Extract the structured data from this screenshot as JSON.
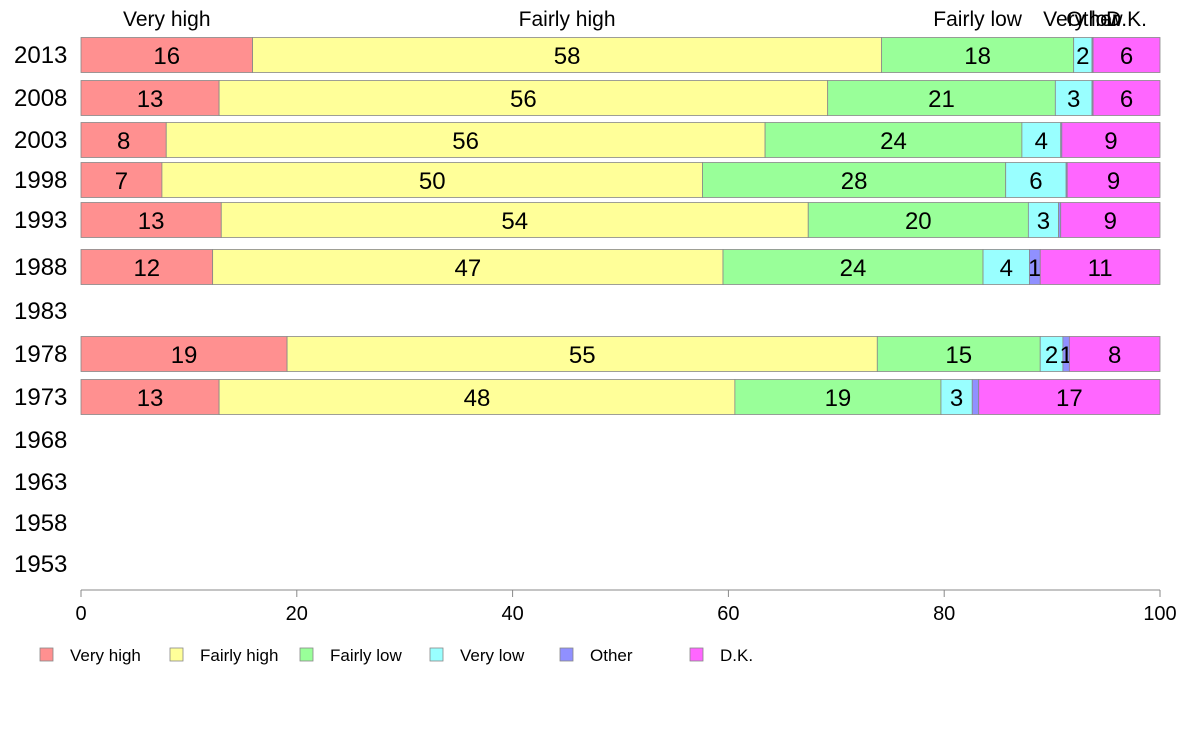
{
  "chart_data": {
    "type": "bar",
    "orientation": "horizontal",
    "stacked": true,
    "title": "",
    "xlabel": "",
    "ylabel": "",
    "xlim": [
      0,
      100
    ],
    "x_ticks": [
      "0",
      "20",
      "40",
      "60",
      "80",
      "100"
    ],
    "legend_position": "bottom",
    "categories": [
      "2013",
      "2008",
      "2003",
      "1998",
      "1993",
      "1988",
      "1983",
      "1978",
      "1973",
      "1968",
      "1963",
      "1958",
      "1953"
    ],
    "series": [
      {
        "name": "Very high",
        "color": "#ff9090",
        "values": [
          15.9,
          12.8,
          7.9,
          7.5,
          13.0,
          12.2,
          null,
          19.1,
          12.8,
          null,
          null,
          null,
          null
        ]
      },
      {
        "name": "Fairly high",
        "color": "#ffff99",
        "values": [
          58.3,
          56.4,
          55.5,
          50.1,
          54.4,
          47.3,
          null,
          54.7,
          47.8,
          null,
          null,
          null,
          null
        ]
      },
      {
        "name": "Fairly low",
        "color": "#99ff99",
        "values": [
          17.8,
          21.1,
          23.8,
          28.1,
          20.4,
          24.1,
          null,
          15.1,
          19.1,
          null,
          null,
          null,
          null
        ]
      },
      {
        "name": "Very low",
        "color": "#99ffff",
        "values": [
          1.7,
          3.4,
          3.6,
          5.6,
          2.8,
          4.3,
          null,
          2.1,
          2.9,
          null,
          null,
          null,
          null
        ]
      },
      {
        "name": "Other",
        "color": "#9090ff",
        "values": [
          0.1,
          0.1,
          0.1,
          0.1,
          0.2,
          1.0,
          null,
          0.6,
          0.6,
          null,
          null,
          null,
          null
        ]
      },
      {
        "name": "D.K.",
        "color": "#ff66ff",
        "values": [
          6.2,
          6.2,
          9.1,
          8.6,
          9.2,
          11.1,
          null,
          8.4,
          16.8,
          null,
          null,
          null,
          null
        ]
      }
    ],
    "labels": {
      "2013": [
        "16",
        "58",
        "18",
        "2",
        "",
        "6"
      ],
      "2008": [
        "13",
        "56",
        "21",
        "3",
        "",
        "6"
      ],
      "2003": [
        "8",
        "56",
        "24",
        "4",
        "",
        "9"
      ],
      "1998": [
        "7",
        "50",
        "28",
        "6",
        "",
        "9"
      ],
      "1993": [
        "13",
        "54",
        "20",
        "3",
        "",
        "9"
      ],
      "1988": [
        "12",
        "47",
        "24",
        "4",
        "1",
        "11"
      ],
      "1983": [
        "",
        "",
        "",
        "",
        "",
        ""
      ],
      "1978": [
        "19",
        "55",
        "15",
        "2",
        "1",
        "8"
      ],
      "1973": [
        "13",
        "48",
        "19",
        "3",
        "",
        "17"
      ],
      "1968": [
        "",
        "",
        "",
        "",
        "",
        ""
      ],
      "1963": [
        "",
        "",
        "",
        "",
        "",
        ""
      ],
      "1958": [
        "",
        "",
        "",
        "",
        "",
        ""
      ],
      "1953": [
        "",
        "",
        "",
        "",
        "",
        ""
      ]
    },
    "top_labels": [
      "Very high",
      "Fairly high",
      "Fairly low",
      "Very low",
      "Other",
      "D.K."
    ],
    "top_label_row": "2013"
  }
}
